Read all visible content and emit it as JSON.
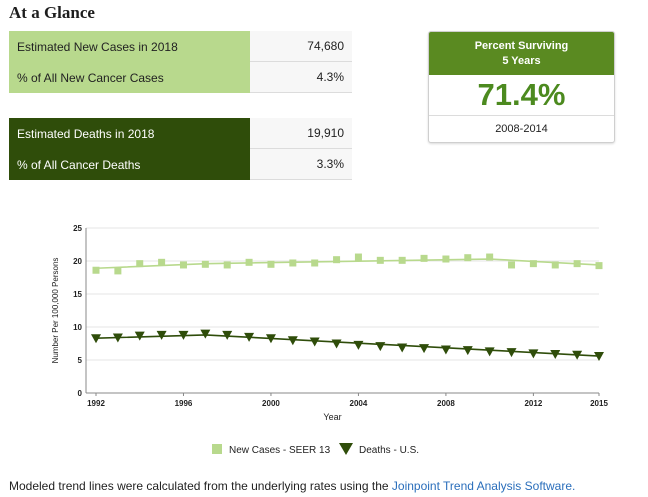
{
  "heading": "At a Glance",
  "stats": {
    "new_cases_label": "Estimated New Cases in 2018",
    "new_cases_value": "74,680",
    "pct_new_label": "% of All New Cancer Cases",
    "pct_new_value": "4.3%",
    "deaths_label": "Estimated Deaths in 2018",
    "deaths_value": "19,910",
    "pct_deaths_label": "% of All Cancer Deaths",
    "pct_deaths_value": "3.3%"
  },
  "survival": {
    "title_line1": "Percent Surviving",
    "title_line2": "5 Years",
    "percent": "71.4%",
    "years": "2008-2014"
  },
  "chart_data": {
    "type": "scatter",
    "xlabel": "Year",
    "ylabel": "Number Per 100,000 Persons",
    "xlim": [
      1992,
      2015
    ],
    "ylim": [
      0,
      25
    ],
    "x_ticks": [
      "1992",
      "1996",
      "2000",
      "2004",
      "2008",
      "2012",
      "2015"
    ],
    "y_ticks": [
      "0",
      "5",
      "10",
      "15",
      "20",
      "25"
    ],
    "x": [
      1992,
      1993,
      1994,
      1995,
      1996,
      1997,
      1998,
      1999,
      2000,
      2001,
      2002,
      2003,
      2004,
      2005,
      2006,
      2007,
      2008,
      2009,
      2010,
      2011,
      2012,
      2013,
      2014,
      2015
    ],
    "series": [
      {
        "name": "New Cases - SEER 13",
        "color": "#b8d98d",
        "marker": "square",
        "values": [
          18.6,
          18.5,
          19.6,
          19.8,
          19.4,
          19.5,
          19.4,
          19.8,
          19.5,
          19.7,
          19.7,
          20.2,
          20.6,
          20.1,
          20.1,
          20.4,
          20.3,
          20.5,
          20.6,
          19.4,
          19.6,
          19.4,
          19.6,
          19.3
        ],
        "trend": [
          [
            1992,
            18.9
          ],
          [
            1997,
            19.6
          ],
          [
            2010,
            20.3
          ],
          [
            2015,
            19.4
          ]
        ]
      },
      {
        "name": "Deaths - U.S.",
        "color": "#2f4d0a",
        "marker": "triangle-down",
        "values": [
          8.3,
          8.4,
          8.7,
          8.8,
          8.8,
          9.0,
          8.8,
          8.5,
          8.3,
          8.0,
          7.8,
          7.5,
          7.3,
          7.1,
          6.9,
          6.8,
          6.6,
          6.5,
          6.3,
          6.2,
          6.0,
          5.9,
          5.8,
          5.6
        ],
        "trend": [
          [
            1992,
            8.3
          ],
          [
            1997,
            8.8
          ],
          [
            2015,
            5.6
          ]
        ]
      }
    ]
  },
  "footnote": {
    "text": "Modeled trend lines were calculated from the underlying rates using the ",
    "link": "Joinpoint Trend Analysis Software."
  }
}
